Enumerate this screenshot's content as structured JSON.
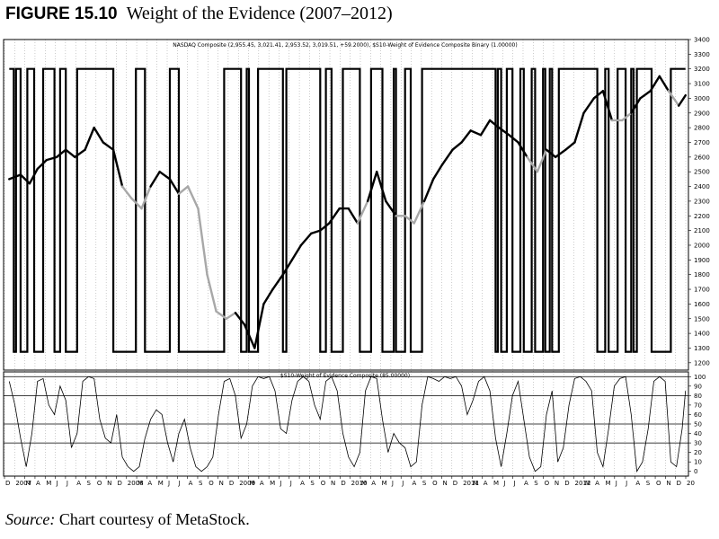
{
  "figure": {
    "label": "FIGURE 15.10",
    "title": "Weight of the Evidence (2007–2012)",
    "source_label": "Source:",
    "source_text": "Chart courtesy of MetaStock."
  },
  "chart_data": [
    {
      "type": "line",
      "title": "NASDAQ Composite (2,955.45, 3,021.41, 2,953.52, 3,019.51, +59.2000), $S10-Weight of Evidence Composite Binary (1.00000)",
      "ylim": [
        1150,
        3400
      ],
      "yticks": [
        1200,
        1300,
        1400,
        1500,
        1600,
        1700,
        1800,
        1900,
        2000,
        2100,
        2200,
        2300,
        2400,
        2500,
        2600,
        2700,
        2800,
        2900,
        3000,
        3100,
        3200,
        3300,
        3400
      ],
      "grid": true,
      "colors": {
        "price_invested": "#000000",
        "price_out": "#a8a8a8",
        "binary": "#000000"
      },
      "series": [
        {
          "x": [
            2007.0,
            2007.1,
            2007.18,
            2007.25,
            2007.33,
            2007.42,
            2007.5,
            2007.58,
            2007.67,
            2007.75,
            2007.83,
            2007.92,
            2008.0,
            2008.08,
            2008.17,
            2008.25,
            2008.33,
            2008.42,
            2008.5,
            2008.58,
            2008.67,
            2008.75,
            2008.83,
            2008.92,
            2009.0,
            2009.08,
            2009.17,
            2009.25,
            2009.33,
            2009.42,
            2009.5,
            2009.58,
            2009.67,
            2009.75,
            2009.83,
            2009.92,
            2010.0,
            2010.08,
            2010.17,
            2010.25,
            2010.33,
            2010.42,
            2010.5,
            2010.58,
            2010.67,
            2010.75,
            2010.83,
            2010.92,
            2011.0,
            2011.08,
            2011.17,
            2011.25,
            2011.33,
            2011.42,
            2011.5,
            2011.58,
            2011.67,
            2011.75,
            2011.83,
            2011.92,
            2012.0,
            2012.08,
            2012.17,
            2012.25,
            2012.33,
            2012.42,
            2012.5,
            2012.58,
            2012.67,
            2012.75,
            2012.83,
            2012.92,
            2012.98
          ],
          "values": [
            2450,
            2480,
            2420,
            2520,
            2580,
            2600,
            2650,
            2600,
            2650,
            2800,
            2700,
            2650,
            2400,
            2320,
            2250,
            2400,
            2500,
            2450,
            2350,
            2400,
            2250,
            1800,
            1550,
            1500,
            1540,
            1460,
            1300,
            1600,
            1700,
            1800,
            1900,
            2000,
            2080,
            2100,
            2150,
            2250,
            2250,
            2150,
            2300,
            2500,
            2300,
            2200,
            2200,
            2150,
            2300,
            2450,
            2550,
            2650,
            2700,
            2780,
            2750,
            2850,
            2800,
            2750,
            2700,
            2600,
            2500,
            2650,
            2600,
            2650,
            2700,
            2900,
            3000,
            3050,
            2850,
            2850,
            2900,
            3000,
            3050,
            3150,
            3050,
            2950,
            3020
          ],
          "in_market": [
            true,
            true,
            true,
            true,
            true,
            true,
            true,
            true,
            true,
            true,
            true,
            true,
            false,
            false,
            false,
            true,
            true,
            true,
            false,
            false,
            false,
            false,
            false,
            false,
            true,
            true,
            true,
            true,
            true,
            true,
            true,
            true,
            true,
            true,
            true,
            true,
            true,
            false,
            true,
            true,
            true,
            false,
            false,
            false,
            true,
            true,
            true,
            true,
            true,
            true,
            true,
            true,
            true,
            true,
            true,
            false,
            false,
            true,
            true,
            true,
            true,
            true,
            true,
            true,
            false,
            false,
            true,
            true,
            true,
            true,
            false,
            true,
            true
          ]
        },
        {
          "name": "$S10-Weight of Evidence Composite Binary",
          "segments": [
            [
              2007.0,
              2007.04,
              1
            ],
            [
              2007.04,
              2007.06,
              0
            ],
            [
              2007.06,
              2007.1,
              1
            ],
            [
              2007.1,
              2007.16,
              0
            ],
            [
              2007.16,
              2007.22,
              1
            ],
            [
              2007.22,
              2007.3,
              0
            ],
            [
              2007.3,
              2007.4,
              1
            ],
            [
              2007.4,
              2007.45,
              0
            ],
            [
              2007.45,
              2007.5,
              1
            ],
            [
              2007.5,
              2007.6,
              0
            ],
            [
              2007.6,
              2007.92,
              1
            ],
            [
              2007.92,
              2008.12,
              0
            ],
            [
              2008.12,
              2008.2,
              1
            ],
            [
              2008.2,
              2008.42,
              0
            ],
            [
              2008.42,
              2008.5,
              1
            ],
            [
              2008.5,
              2008.9,
              0
            ],
            [
              2008.9,
              2009.05,
              1
            ],
            [
              2009.05,
              2009.1,
              0
            ],
            [
              2009.1,
              2009.12,
              1
            ],
            [
              2009.12,
              2009.2,
              0
            ],
            [
              2009.2,
              2009.42,
              1
            ],
            [
              2009.42,
              2009.45,
              0
            ],
            [
              2009.45,
              2009.75,
              1
            ],
            [
              2009.75,
              2009.8,
              0
            ],
            [
              2009.8,
              2009.85,
              1
            ],
            [
              2009.85,
              2009.95,
              0
            ],
            [
              2009.95,
              2010.1,
              1
            ],
            [
              2010.1,
              2010.2,
              0
            ],
            [
              2010.2,
              2010.3,
              1
            ],
            [
              2010.3,
              2010.4,
              0
            ],
            [
              2010.4,
              2010.42,
              1
            ],
            [
              2010.42,
              2010.5,
              0
            ],
            [
              2010.5,
              2010.55,
              1
            ],
            [
              2010.55,
              2010.65,
              0
            ],
            [
              2010.65,
              2011.3,
              1
            ],
            [
              2011.3,
              2011.32,
              0
            ],
            [
              2011.32,
              2011.35,
              1
            ],
            [
              2011.35,
              2011.4,
              0
            ],
            [
              2011.4,
              2011.45,
              1
            ],
            [
              2011.45,
              2011.52,
              0
            ],
            [
              2011.52,
              2011.55,
              1
            ],
            [
              2011.55,
              2011.62,
              0
            ],
            [
              2011.62,
              2011.65,
              1
            ],
            [
              2011.65,
              2011.72,
              0
            ],
            [
              2011.72,
              2011.74,
              1
            ],
            [
              2011.74,
              2011.78,
              0
            ],
            [
              2011.78,
              2011.8,
              1
            ],
            [
              2011.8,
              2011.86,
              0
            ],
            [
              2011.86,
              2012.2,
              1
            ],
            [
              2012.2,
              2012.27,
              0
            ],
            [
              2012.27,
              2012.3,
              1
            ],
            [
              2012.3,
              2012.38,
              0
            ],
            [
              2012.38,
              2012.45,
              1
            ],
            [
              2012.45,
              2012.5,
              0
            ],
            [
              2012.5,
              2012.52,
              1
            ],
            [
              2012.52,
              2012.55,
              0
            ],
            [
              2012.55,
              2012.68,
              1
            ],
            [
              2012.68,
              2012.85,
              0
            ],
            [
              2012.85,
              2012.98,
              1
            ]
          ]
        }
      ]
    },
    {
      "type": "line",
      "title": "$S10-Weight of Evidence Composite (85.00000)",
      "ylim": [
        -5,
        105
      ],
      "yticks": [
        0,
        10,
        20,
        30,
        40,
        50,
        60,
        70,
        80,
        90,
        100
      ],
      "reference_lines": [
        30,
        50,
        80,
        100
      ],
      "grid": true,
      "series": [
        {
          "name": "$S10-Weight of Evidence Composite",
          "x": [
            2007.0,
            2007.05,
            2007.1,
            2007.15,
            2007.2,
            2007.25,
            2007.3,
            2007.35,
            2007.4,
            2007.45,
            2007.5,
            2007.55,
            2007.6,
            2007.65,
            2007.7,
            2007.75,
            2007.8,
            2007.85,
            2007.9,
            2007.95,
            2008.0,
            2008.05,
            2008.1,
            2008.15,
            2008.2,
            2008.25,
            2008.3,
            2008.35,
            2008.4,
            2008.45,
            2008.5,
            2008.55,
            2008.6,
            2008.65,
            2008.7,
            2008.75,
            2008.8,
            2008.85,
            2008.9,
            2008.95,
            2009.0,
            2009.05,
            2009.1,
            2009.15,
            2009.2,
            2009.25,
            2009.3,
            2009.35,
            2009.4,
            2009.45,
            2009.5,
            2009.55,
            2009.6,
            2009.65,
            2009.7,
            2009.75,
            2009.8,
            2009.85,
            2009.9,
            2009.95,
            2010.0,
            2010.05,
            2010.1,
            2010.15,
            2010.2,
            2010.25,
            2010.3,
            2010.35,
            2010.4,
            2010.45,
            2010.5,
            2010.55,
            2010.6,
            2010.65,
            2010.7,
            2010.75,
            2010.8,
            2010.85,
            2010.9,
            2010.95,
            2011.0,
            2011.05,
            2011.1,
            2011.15,
            2011.2,
            2011.25,
            2011.3,
            2011.35,
            2011.4,
            2011.45,
            2011.5,
            2011.55,
            2011.6,
            2011.65,
            2011.7,
            2011.75,
            2011.8,
            2011.85,
            2011.9,
            2011.95,
            2012.0,
            2012.05,
            2012.1,
            2012.15,
            2012.2,
            2012.25,
            2012.3,
            2012.35,
            2012.4,
            2012.45,
            2012.5,
            2012.55,
            2012.6,
            2012.65,
            2012.7,
            2012.75,
            2012.8,
            2012.85,
            2012.9,
            2012.95,
            2012.98
          ],
          "values": [
            95,
            70,
            35,
            5,
            40,
            95,
            98,
            70,
            60,
            90,
            75,
            25,
            40,
            95,
            100,
            98,
            55,
            35,
            30,
            60,
            15,
            5,
            0,
            5,
            35,
            55,
            65,
            60,
            30,
            10,
            40,
            55,
            25,
            5,
            0,
            5,
            15,
            60,
            95,
            98,
            80,
            35,
            50,
            90,
            100,
            98,
            100,
            85,
            45,
            40,
            75,
            95,
            100,
            95,
            70,
            55,
            95,
            100,
            85,
            40,
            15,
            5,
            20,
            85,
            100,
            98,
            55,
            20,
            40,
            30,
            25,
            5,
            10,
            70,
            100,
            98,
            95,
            100,
            98,
            100,
            90,
            60,
            75,
            95,
            100,
            85,
            35,
            5,
            40,
            80,
            95,
            55,
            15,
            0,
            5,
            60,
            85,
            10,
            25,
            70,
            98,
            100,
            95,
            85,
            20,
            5,
            45,
            90,
            98,
            100,
            60,
            0,
            10,
            45,
            95,
            100,
            95,
            10,
            5,
            45,
            85
          ]
        }
      ]
    }
  ],
  "x_axis": {
    "labels": [
      "D",
      "2007",
      "M",
      "A",
      "M",
      "J",
      "J",
      "A",
      "S",
      "O",
      "N",
      "D",
      "2008",
      "M",
      "A",
      "M",
      "J",
      "J",
      "A",
      "S",
      "O",
      "N",
      "D",
      "2009",
      "M",
      "A",
      "M",
      "J",
      "J",
      "A",
      "S",
      "O",
      "N",
      "D",
      "2010",
      "M",
      "A",
      "M",
      "J",
      "J",
      "A",
      "S",
      "O",
      "N",
      "D",
      "2011",
      "M",
      "A",
      "M",
      "J",
      "J",
      "A",
      "S",
      "O",
      "N",
      "D",
      "2012",
      "M",
      "A",
      "M",
      "J",
      "J",
      "A",
      "S",
      "O",
      "N",
      "D",
      "20"
    ]
  }
}
